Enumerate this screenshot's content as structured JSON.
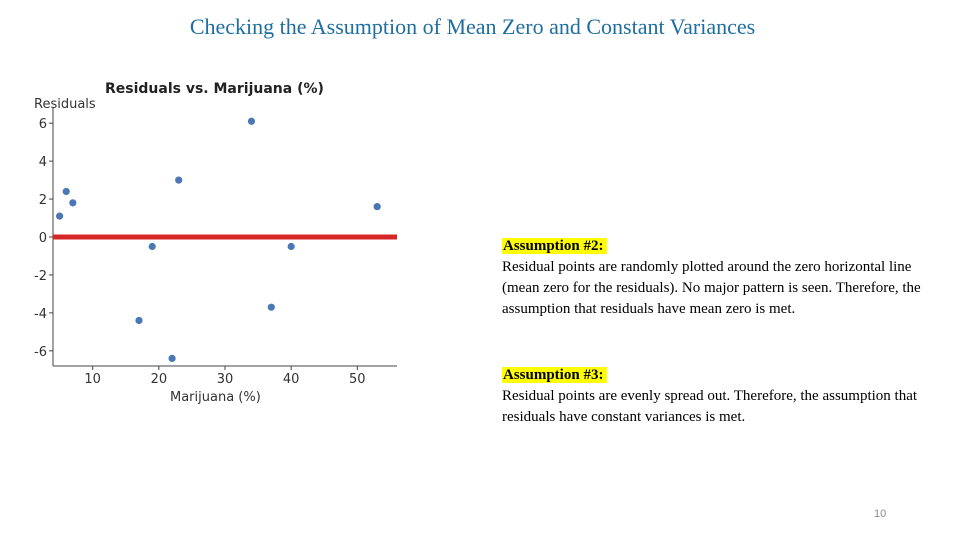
{
  "slide": {
    "title": "Checking the Assumption of Mean Zero and Constant Variances",
    "page_number": "10"
  },
  "assumption2": {
    "heading": "Assumption #2:",
    "body": "Residual points are randomly plotted around the zero horizontal line (mean zero for the residuals). No major pattern is seen. Therefore, the assumption that residuals have mean zero is met."
  },
  "assumption3": {
    "heading": "Assumption #3:",
    "body": "Residual points are evenly spread out. Therefore, the assumption that residuals have constant variances is met."
  },
  "chart_data": {
    "type": "scatter",
    "title": "Residuals vs. Marijuana (%)",
    "xlabel": "Marijuana (%)",
    "ylabel": "Residuals",
    "xlim": [
      4,
      56
    ],
    "ylim": [
      -6.8,
      6.8
    ],
    "xticks": [
      10,
      20,
      30,
      40,
      50
    ],
    "yticks": [
      6,
      4,
      2,
      0,
      -2,
      -4,
      -6
    ],
    "reference_line": {
      "y": 0,
      "color": "#d62728"
    },
    "point_color": "#4a78b5",
    "points": [
      {
        "x": 5.0,
        "y": 1.1
      },
      {
        "x": 6.0,
        "y": 2.4
      },
      {
        "x": 7.0,
        "y": 1.8
      },
      {
        "x": 17.0,
        "y": -4.4
      },
      {
        "x": 19.0,
        "y": -0.5
      },
      {
        "x": 22.0,
        "y": -6.4
      },
      {
        "x": 23.0,
        "y": 3.0
      },
      {
        "x": 34.0,
        "y": 6.1
      },
      {
        "x": 37.0,
        "y": -3.7
      },
      {
        "x": 40.0,
        "y": -0.5
      },
      {
        "x": 53.0,
        "y": 1.6
      }
    ],
    "grid": false
  }
}
